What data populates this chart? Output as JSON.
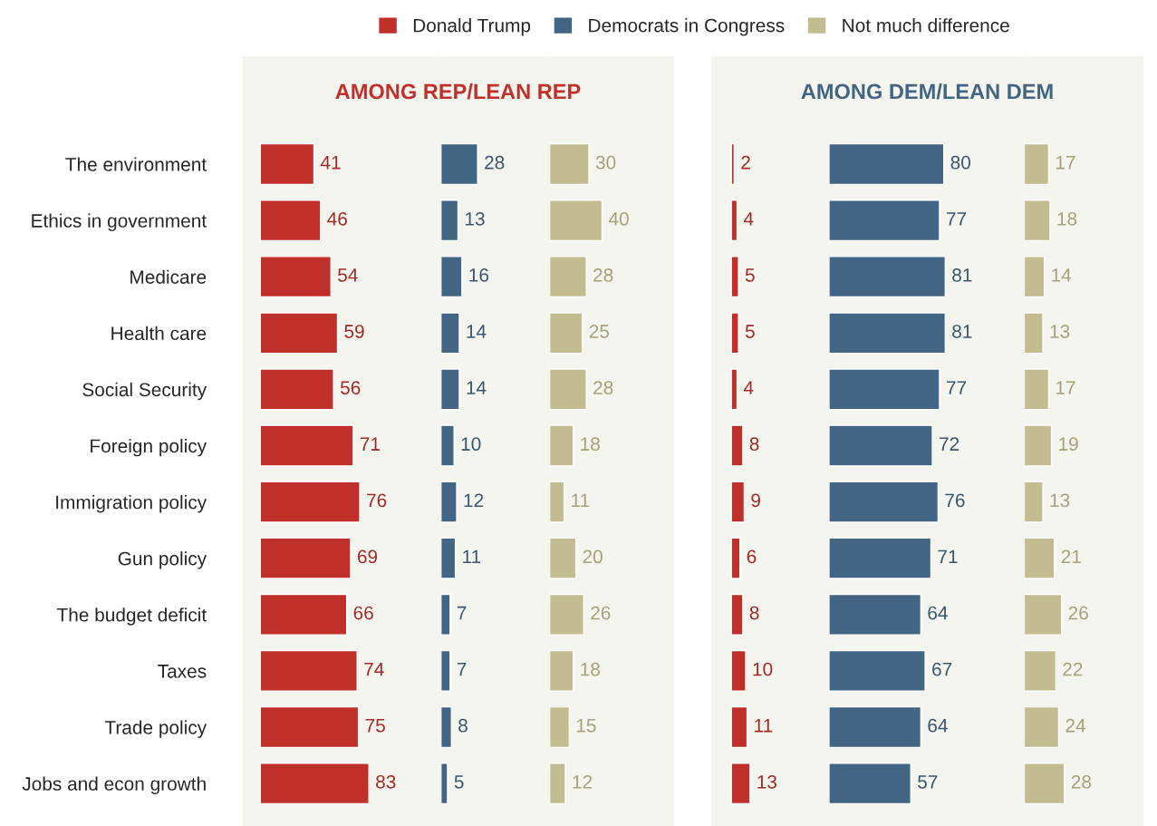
{
  "chart_data": [
    {
      "type": "bar",
      "orientation": "horizontal",
      "title": "AMONG REP/LEAN REP",
      "categories": [
        "The environment",
        "Ethics in government",
        "Medicare",
        "Health care",
        "Social Security",
        "Foreign policy",
        "Immigration policy",
        "Gun policy",
        "The budget deficit",
        "Taxes",
        "Trade policy",
        "Jobs and econ growth"
      ],
      "series": [
        {
          "name": "Donald Trump",
          "color": "#c0302a",
          "values": [
            41,
            46,
            54,
            59,
            56,
            71,
            76,
            69,
            66,
            74,
            75,
            83
          ]
        }
      ],
      "data_labels": true,
      "legend": "top",
      "tick_labels": "y"
    },
    {
      "type": "bar",
      "orientation": "horizontal",
      "categories": [
        null,
        null,
        null,
        null,
        null,
        null,
        null,
        null,
        null,
        null,
        null,
        null
      ],
      "series": [
        {
          "name": "Democrats in Congress",
          "color": "#436584",
          "values": [
            28,
            13,
            16,
            14,
            14,
            10,
            12,
            11,
            7,
            7,
            8,
            5
          ]
        }
      ],
      "data_labels": true,
      "tick_labels": false
    },
    {
      "type": "bar",
      "orientation": "horizontal",
      "categories": [
        null,
        null,
        null,
        null,
        null,
        null,
        null,
        null,
        null,
        null,
        null,
        null
      ],
      "series": [
        {
          "name": "Not much difference",
          "color": "#c2bc90",
          "values": [
            30,
            40,
            28,
            25,
            28,
            18,
            11,
            20,
            26,
            18,
            15,
            12
          ]
        }
      ],
      "data_labels": true,
      "tick_labels": false
    },
    {
      "type": "bar",
      "orientation": "horizontal",
      "categories": [
        null,
        null,
        null,
        null,
        null,
        null,
        null,
        null,
        null,
        null,
        null,
        null
      ],
      "series": [
        {
          "color": "#c0302a",
          "values": [
            2,
            4,
            5,
            5,
            4,
            8,
            9,
            6,
            8,
            10,
            11,
            13
          ]
        }
      ],
      "data_labels": true,
      "tick_labels": false
    },
    {
      "type": "bar",
      "orientation": "horizontal",
      "title": "AMONG DEM/LEAN DEM",
      "categories": [
        null,
        null,
        null,
        null,
        null,
        null,
        null,
        null,
        null,
        null,
        null,
        null
      ],
      "series": [
        {
          "color": "#436584",
          "values": [
            80,
            77,
            81,
            81,
            77,
            72,
            76,
            71,
            64,
            67,
            64,
            57
          ]
        }
      ],
      "data_labels": true,
      "tick_labels": false
    },
    {
      "type": "bar",
      "orientation": "horizontal",
      "categories": [
        null,
        null,
        null,
        null,
        null,
        null,
        null,
        null,
        null,
        null,
        null,
        null
      ],
      "series": [
        {
          "color": "#c2bc90",
          "values": [
            17,
            18,
            14,
            13,
            17,
            19,
            13,
            21,
            26,
            22,
            24,
            28
          ]
        }
      ],
      "data_labels": true,
      "tick_labels": false
    }
  ]
}
